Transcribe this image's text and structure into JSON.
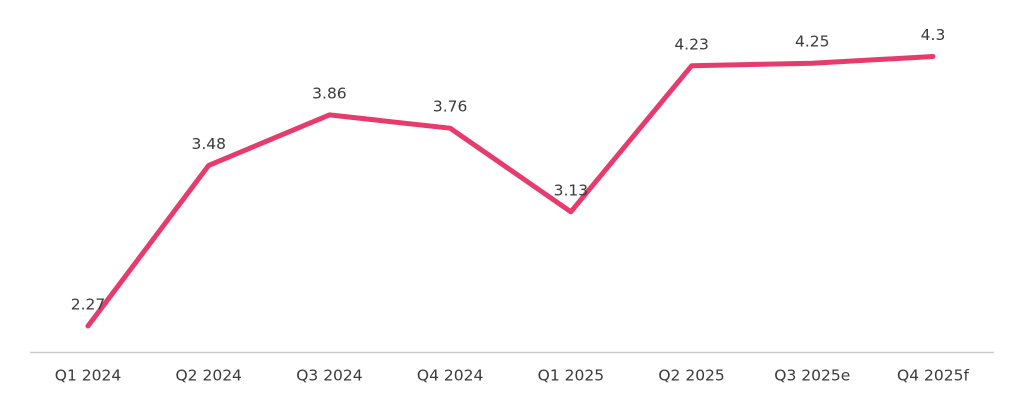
{
  "chart_data": {
    "type": "line",
    "title": "",
    "xlabel": "",
    "ylabel": "",
    "categories": [
      "Q1 2024",
      "Q2 2024",
      "Q3 2024",
      "Q4 2024",
      "Q1 2025",
      "Q2 2025",
      "Q3 2025e",
      "Q4 2025f"
    ],
    "series": [
      {
        "name": "quarterly-values",
        "values": [
          2.27,
          3.48,
          3.86,
          3.76,
          3.13,
          4.23,
          4.25,
          4.3
        ],
        "data_labels": [
          "2.27",
          "3.48",
          "3.86",
          "3.76",
          "3.13",
          "4.23",
          "4.25",
          "4.3"
        ]
      }
    ],
    "ylim": [
      2.07,
      4.5
    ],
    "grid": false,
    "legend_position": "none",
    "y_axis_visible": false,
    "x_axis_visible": true,
    "colors": {
      "line": "#e73b6e",
      "axis_line": "#cccccc",
      "label_text": "#3b3b3b"
    }
  }
}
